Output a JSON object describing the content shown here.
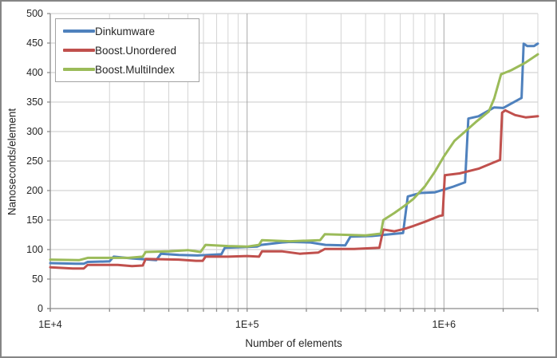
{
  "chart_data": {
    "type": "line",
    "title": "",
    "xlabel": "Number of elements",
    "ylabel": "Nanoseconds/element",
    "x_scale": "log",
    "xlim": [
      10000,
      3000000
    ],
    "ylim": [
      0,
      500
    ],
    "grid": true,
    "legend_position": "top-left",
    "y_ticks": [
      0,
      50,
      100,
      150,
      200,
      250,
      300,
      350,
      400,
      450,
      500
    ],
    "x_major_ticks": [
      {
        "value": 10000,
        "label": "1E+4"
      },
      {
        "value": 100000,
        "label": "1E+5"
      },
      {
        "value": 1000000,
        "label": "1E+6"
      }
    ],
    "x_minor_gridlines": [
      20000,
      30000,
      40000,
      50000,
      60000,
      70000,
      80000,
      90000,
      200000,
      300000,
      400000,
      500000,
      600000,
      700000,
      800000,
      900000,
      2000000,
      3000000
    ],
    "x_major_gridlines": [
      100000,
      1000000
    ],
    "series": [
      {
        "name": "Dinkumware",
        "color": "#4F81BD",
        "points": [
          [
            10000,
            77
          ],
          [
            13500,
            76
          ],
          [
            14800,
            76
          ],
          [
            15500,
            79
          ],
          [
            20000,
            80
          ],
          [
            21000,
            88
          ],
          [
            26000,
            85
          ],
          [
            34500,
            82
          ],
          [
            36500,
            93
          ],
          [
            45000,
            91
          ],
          [
            56000,
            90
          ],
          [
            74000,
            92
          ],
          [
            77000,
            103
          ],
          [
            95000,
            104
          ],
          [
            112000,
            105
          ],
          [
            118000,
            108
          ],
          [
            150000,
            112
          ],
          [
            165000,
            113
          ],
          [
            210000,
            112
          ],
          [
            250000,
            108
          ],
          [
            315000,
            107
          ],
          [
            335000,
            122
          ],
          [
            430000,
            123
          ],
          [
            620000,
            128
          ],
          [
            655000,
            190
          ],
          [
            760000,
            196
          ],
          [
            900000,
            197
          ],
          [
            1100000,
            206
          ],
          [
            1280000,
            214
          ],
          [
            1330000,
            322
          ],
          [
            1500000,
            326
          ],
          [
            1800000,
            341
          ],
          [
            2000000,
            340
          ],
          [
            2480000,
            357
          ],
          [
            2540000,
            449
          ],
          [
            2650000,
            445
          ],
          [
            2870000,
            445
          ],
          [
            3000000,
            449
          ]
        ]
      },
      {
        "name": "Boost.Unordered",
        "color": "#C0504D",
        "points": [
          [
            10000,
            70
          ],
          [
            13000,
            68
          ],
          [
            14800,
            68
          ],
          [
            15500,
            74
          ],
          [
            22000,
            74
          ],
          [
            26000,
            72
          ],
          [
            29500,
            73
          ],
          [
            30500,
            84
          ],
          [
            45000,
            83
          ],
          [
            55000,
            81
          ],
          [
            59500,
            81
          ],
          [
            61500,
            88
          ],
          [
            80000,
            88
          ],
          [
            100000,
            89
          ],
          [
            115000,
            88
          ],
          [
            119000,
            97
          ],
          [
            150000,
            97
          ],
          [
            185000,
            93
          ],
          [
            230000,
            95
          ],
          [
            248000,
            101
          ],
          [
            350000,
            101
          ],
          [
            470000,
            103
          ],
          [
            492000,
            134
          ],
          [
            560000,
            131
          ],
          [
            630000,
            135
          ],
          [
            700000,
            140
          ],
          [
            800000,
            147
          ],
          [
            950000,
            157
          ],
          [
            985000,
            158
          ],
          [
            1010000,
            226
          ],
          [
            1200000,
            229
          ],
          [
            1500000,
            237
          ],
          [
            1800000,
            248
          ],
          [
            1930000,
            252
          ],
          [
            1975000,
            332
          ],
          [
            2050000,
            336
          ],
          [
            2300000,
            328
          ],
          [
            2600000,
            324
          ],
          [
            3000000,
            326
          ]
        ]
      },
      {
        "name": "Boost.MultiIndex",
        "color": "#9BBB59",
        "points": [
          [
            10000,
            83
          ],
          [
            14000,
            82
          ],
          [
            15500,
            86
          ],
          [
            25000,
            86
          ],
          [
            29500,
            88
          ],
          [
            30500,
            96
          ],
          [
            40000,
            97
          ],
          [
            50000,
            99
          ],
          [
            58000,
            96
          ],
          [
            61500,
            108
          ],
          [
            80000,
            106
          ],
          [
            100000,
            105
          ],
          [
            115000,
            108
          ],
          [
            119000,
            116
          ],
          [
            165000,
            114
          ],
          [
            235000,
            116
          ],
          [
            248000,
            126
          ],
          [
            400000,
            124
          ],
          [
            478000,
            127
          ],
          [
            492000,
            150
          ],
          [
            560000,
            162
          ],
          [
            630000,
            174
          ],
          [
            700000,
            186
          ],
          [
            800000,
            207
          ],
          [
            900000,
            232
          ],
          [
            1000000,
            258
          ],
          [
            1130000,
            284
          ],
          [
            1280000,
            300
          ],
          [
            1450000,
            316
          ],
          [
            1690000,
            334
          ],
          [
            1800000,
            356
          ],
          [
            1950000,
            397
          ],
          [
            2200000,
            404
          ],
          [
            2600000,
            417
          ],
          [
            3000000,
            431
          ]
        ]
      }
    ]
  },
  "colors": {
    "background": "#FFFFFF",
    "chart_border": "#858585",
    "grid_horizontal": "#C8C8C8",
    "grid_minor_vertical": "#D4D4D4",
    "grid_major_vertical": "#A8A8A8",
    "axis": "#8A8A8A",
    "text": "#262626",
    "legend_border": "#A3A3A3"
  }
}
